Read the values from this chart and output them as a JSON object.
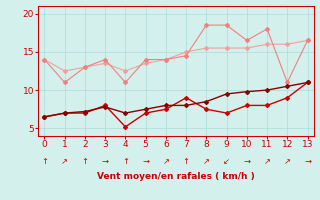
{
  "x": [
    0,
    1,
    2,
    3,
    4,
    5,
    6,
    7,
    8,
    9,
    10,
    11,
    12,
    13
  ],
  "line1_spiky": [
    14.0,
    11.0,
    13.0,
    14.0,
    11.0,
    14.0,
    14.0,
    14.5,
    18.5,
    18.5,
    16.5,
    18.0,
    11.0,
    16.5
  ],
  "line2_trend": [
    14.0,
    12.5,
    13.0,
    13.5,
    12.5,
    13.5,
    14.0,
    15.0,
    15.5,
    15.5,
    15.5,
    16.0,
    16.0,
    16.5
  ],
  "line3_dark_spiky": [
    6.5,
    7.0,
    7.0,
    8.0,
    5.2,
    7.0,
    7.5,
    9.0,
    7.5,
    7.0,
    8.0,
    8.0,
    9.0,
    11.0
  ],
  "line4_dark_trend": [
    6.5,
    7.0,
    7.2,
    7.8,
    7.0,
    7.5,
    8.0,
    8.0,
    8.5,
    9.5,
    9.8,
    10.0,
    10.5,
    11.0
  ],
  "color_light_spiky": "#f08080",
  "color_light_trend": "#f0a0a0",
  "color_dark_spiky": "#cc0000",
  "color_dark_trend": "#880000",
  "bg_color": "#d4f0ec",
  "grid_color": "#a8dcd8",
  "xlabel": "Vent moyen/en rafales ( km/h )",
  "ylim": [
    4,
    21
  ],
  "xlim": [
    -0.3,
    13.3
  ],
  "yticks": [
    5,
    10,
    15,
    20
  ],
  "xticks": [
    0,
    1,
    2,
    3,
    4,
    5,
    6,
    7,
    8,
    9,
    10,
    11,
    12,
    13
  ],
  "wind_dirs": [
    "↑",
    "↗",
    "↑",
    "→",
    "↑",
    "→",
    "↗",
    "↑",
    "↗",
    "↙",
    "→",
    "↗",
    "↗",
    "→"
  ]
}
